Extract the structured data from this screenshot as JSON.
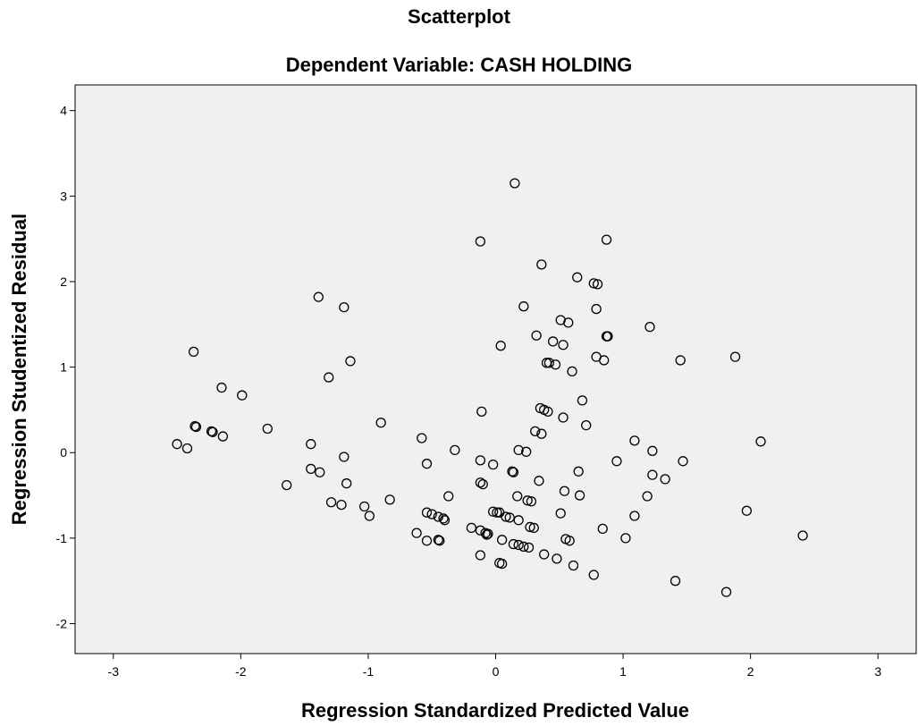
{
  "chart_data": {
    "type": "scatter",
    "title": "Scatterplot",
    "subtitle": "Dependent Variable: CASH HOLDING",
    "xlabel": "Regression Standardized Predicted Value",
    "ylabel": "Regression Studentized Residual",
    "xlim": [
      -3.3,
      3.3
    ],
    "ylim": [
      -2.35,
      4.3
    ],
    "xticks": [
      -3,
      -2,
      -1,
      0,
      1,
      2,
      3
    ],
    "yticks": [
      -2,
      -1,
      0,
      1,
      2,
      3,
      4
    ],
    "grid": false,
    "legend": "none",
    "colors": {
      "plot_background": "#f0f0f0",
      "marker_edge": "#000000"
    },
    "points": [
      {
        "x": 0.15,
        "y": 3.15
      },
      {
        "x": -0.12,
        "y": 2.47
      },
      {
        "x": 0.87,
        "y": 2.49
      },
      {
        "x": 0.36,
        "y": 2.2
      },
      {
        "x": 0.64,
        "y": 2.05
      },
      {
        "x": 0.77,
        "y": 1.98
      },
      {
        "x": 0.8,
        "y": 1.97
      },
      {
        "x": -1.39,
        "y": 1.82
      },
      {
        "x": -1.19,
        "y": 1.7
      },
      {
        "x": 0.22,
        "y": 1.71
      },
      {
        "x": 0.79,
        "y": 1.68
      },
      {
        "x": 0.51,
        "y": 1.55
      },
      {
        "x": 0.57,
        "y": 1.52
      },
      {
        "x": 1.21,
        "y": 1.47
      },
      {
        "x": 0.32,
        "y": 1.37
      },
      {
        "x": 0.87,
        "y": 1.36
      },
      {
        "x": 0.88,
        "y": 1.36
      },
      {
        "x": 0.45,
        "y": 1.3
      },
      {
        "x": 0.53,
        "y": 1.26
      },
      {
        "x": 0.04,
        "y": 1.25
      },
      {
        "x": -2.37,
        "y": 1.18
      },
      {
        "x": 0.79,
        "y": 1.12
      },
      {
        "x": 1.88,
        "y": 1.12
      },
      {
        "x": 0.85,
        "y": 1.08
      },
      {
        "x": 1.45,
        "y": 1.08
      },
      {
        "x": -1.14,
        "y": 1.07
      },
      {
        "x": 0.4,
        "y": 1.05
      },
      {
        "x": 0.42,
        "y": 1.05
      },
      {
        "x": 0.47,
        "y": 1.03
      },
      {
        "x": 0.6,
        "y": 0.95
      },
      {
        "x": -1.31,
        "y": 0.88
      },
      {
        "x": -2.15,
        "y": 0.76
      },
      {
        "x": -1.99,
        "y": 0.67
      },
      {
        "x": 0.68,
        "y": 0.61
      },
      {
        "x": 0.35,
        "y": 0.52
      },
      {
        "x": 0.38,
        "y": 0.5
      },
      {
        "x": 0.41,
        "y": 0.48
      },
      {
        "x": -0.11,
        "y": 0.48
      },
      {
        "x": 0.53,
        "y": 0.41
      },
      {
        "x": -0.9,
        "y": 0.35
      },
      {
        "x": 0.71,
        "y": 0.32
      },
      {
        "x": -2.36,
        "y": 0.31
      },
      {
        "x": -2.35,
        "y": 0.3
      },
      {
        "x": -1.79,
        "y": 0.28
      },
      {
        "x": 0.31,
        "y": 0.25
      },
      {
        "x": -2.23,
        "y": 0.25
      },
      {
        "x": -2.22,
        "y": 0.24
      },
      {
        "x": 0.36,
        "y": 0.22
      },
      {
        "x": -2.14,
        "y": 0.19
      },
      {
        "x": -0.58,
        "y": 0.17
      },
      {
        "x": 1.09,
        "y": 0.14
      },
      {
        "x": 2.08,
        "y": 0.13
      },
      {
        "x": -1.45,
        "y": 0.1
      },
      {
        "x": -2.5,
        "y": 0.1
      },
      {
        "x": -2.42,
        "y": 0.05
      },
      {
        "x": -0.32,
        "y": 0.03
      },
      {
        "x": 0.18,
        "y": 0.03
      },
      {
        "x": 0.24,
        "y": 0.01
      },
      {
        "x": 1.23,
        "y": 0.02
      },
      {
        "x": -1.19,
        "y": -0.05
      },
      {
        "x": -0.12,
        "y": -0.09
      },
      {
        "x": 0.95,
        "y": -0.1
      },
      {
        "x": 1.47,
        "y": -0.1
      },
      {
        "x": -0.54,
        "y": -0.13
      },
      {
        "x": -0.02,
        "y": -0.14
      },
      {
        "x": -1.45,
        "y": -0.19
      },
      {
        "x": 0.13,
        "y": -0.22
      },
      {
        "x": 0.14,
        "y": -0.23
      },
      {
        "x": -1.38,
        "y": -0.23
      },
      {
        "x": 0.65,
        "y": -0.22
      },
      {
        "x": 1.23,
        "y": -0.26
      },
      {
        "x": 1.33,
        "y": -0.31
      },
      {
        "x": 0.34,
        "y": -0.33
      },
      {
        "x": -0.12,
        "y": -0.35
      },
      {
        "x": -0.1,
        "y": -0.37
      },
      {
        "x": -1.17,
        "y": -0.36
      },
      {
        "x": -1.64,
        "y": -0.38
      },
      {
        "x": 0.54,
        "y": -0.45
      },
      {
        "x": 0.66,
        "y": -0.5
      },
      {
        "x": -0.37,
        "y": -0.51
      },
      {
        "x": 0.17,
        "y": -0.51
      },
      {
        "x": 1.19,
        "y": -0.51
      },
      {
        "x": -0.83,
        "y": -0.55
      },
      {
        "x": 0.25,
        "y": -0.56
      },
      {
        "x": 0.28,
        "y": -0.57
      },
      {
        "x": -1.29,
        "y": -0.58
      },
      {
        "x": -1.21,
        "y": -0.61
      },
      {
        "x": -1.03,
        "y": -0.63
      },
      {
        "x": -0.02,
        "y": -0.69
      },
      {
        "x": 0.01,
        "y": -0.7
      },
      {
        "x": 0.03,
        "y": -0.7
      },
      {
        "x": 1.97,
        "y": -0.68
      },
      {
        "x": 0.51,
        "y": -0.71
      },
      {
        "x": -0.54,
        "y": -0.7
      },
      {
        "x": -0.5,
        "y": -0.72
      },
      {
        "x": -0.99,
        "y": -0.74
      },
      {
        "x": 0.08,
        "y": -0.75
      },
      {
        "x": 0.11,
        "y": -0.76
      },
      {
        "x": 1.09,
        "y": -0.74
      },
      {
        "x": -0.45,
        "y": -0.75
      },
      {
        "x": -0.41,
        "y": -0.77
      },
      {
        "x": -0.4,
        "y": -0.79
      },
      {
        "x": 0.18,
        "y": -0.79
      },
      {
        "x": 0.27,
        "y": -0.87
      },
      {
        "x": 0.3,
        "y": -0.88
      },
      {
        "x": -0.19,
        "y": -0.88
      },
      {
        "x": -0.12,
        "y": -0.91
      },
      {
        "x": 0.84,
        "y": -0.89
      },
      {
        "x": -0.08,
        "y": -0.94
      },
      {
        "x": -0.07,
        "y": -0.96
      },
      {
        "x": -0.06,
        "y": -0.95
      },
      {
        "x": -0.62,
        "y": -0.94
      },
      {
        "x": 2.41,
        "y": -0.97
      },
      {
        "x": 0.55,
        "y": -1.01
      },
      {
        "x": 0.58,
        "y": -1.03
      },
      {
        "x": 1.02,
        "y": -1.0
      },
      {
        "x": -0.54,
        "y": -1.03
      },
      {
        "x": -0.45,
        "y": -1.02
      },
      {
        "x": -0.44,
        "y": -1.03
      },
      {
        "x": 0.05,
        "y": -1.02
      },
      {
        "x": 0.14,
        "y": -1.07
      },
      {
        "x": 0.18,
        "y": -1.08
      },
      {
        "x": 0.22,
        "y": -1.1
      },
      {
        "x": 0.26,
        "y": -1.11
      },
      {
        "x": 0.38,
        "y": -1.19
      },
      {
        "x": -0.12,
        "y": -1.2
      },
      {
        "x": 0.48,
        "y": -1.24
      },
      {
        "x": 0.03,
        "y": -1.29
      },
      {
        "x": 0.05,
        "y": -1.3
      },
      {
        "x": 0.61,
        "y": -1.32
      },
      {
        "x": 0.77,
        "y": -1.43
      },
      {
        "x": 1.41,
        "y": -1.5
      },
      {
        "x": 1.81,
        "y": -1.63
      }
    ]
  }
}
